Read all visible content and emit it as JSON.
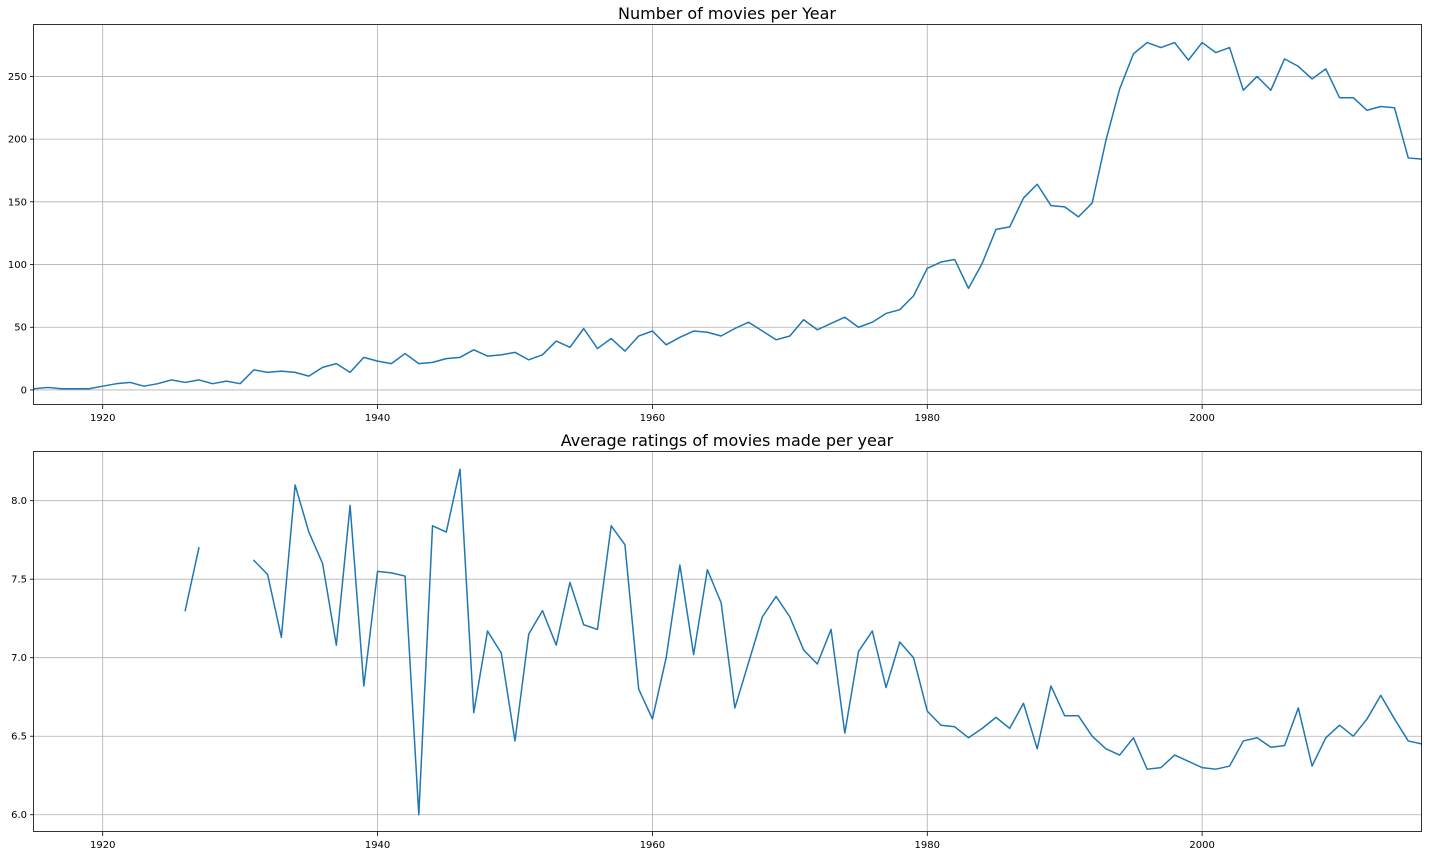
{
  "colors": {
    "series": "#1f77b4",
    "grid": "#b0b0b0",
    "frame": "#000000",
    "background": "#ffffff"
  },
  "chart_data": [
    {
      "type": "line",
      "title": "Number of movies per Year",
      "xlabel": "",
      "ylabel": "",
      "grid": true,
      "xlim": [
        1915,
        2016
      ],
      "ylim": [
        -12,
        291
      ],
      "xticks": [
        1920,
        1940,
        1960,
        1980,
        2000
      ],
      "yticks": [
        0,
        50,
        100,
        150,
        200,
        250
      ],
      "series": [
        {
          "x": [
            1915,
            1916,
            1917,
            1918,
            1919,
            1920,
            1921,
            1922,
            1923,
            1924,
            1925,
            1926,
            1927,
            1928,
            1929,
            1930,
            1931,
            1932,
            1933,
            1934,
            1935,
            1936,
            1937,
            1938,
            1939,
            1940,
            1941,
            1942,
            1943,
            1944,
            1945,
            1946,
            1947,
            1948,
            1949,
            1950,
            1951,
            1952,
            1953,
            1954,
            1955,
            1956,
            1957,
            1958,
            1959,
            1960,
            1961,
            1962,
            1963,
            1964,
            1965,
            1966,
            1967,
            1968,
            1969,
            1970,
            1971,
            1972,
            1973,
            1974,
            1975,
            1976,
            1977,
            1978,
            1979,
            1980,
            1981,
            1982,
            1983,
            1984,
            1985,
            1986,
            1987,
            1988,
            1989,
            1990,
            1991,
            1992,
            1993,
            1994,
            1995,
            1996,
            1997,
            1998,
            1999,
            2000,
            2001,
            2002,
            2003,
            2004,
            2005,
            2006,
            2007,
            2008,
            2009,
            2010,
            2011,
            2012,
            2013,
            2014,
            2015,
            2016
          ],
          "y": [
            1,
            2,
            1,
            1,
            1,
            3,
            5,
            6,
            3,
            5,
            8,
            6,
            8,
            5,
            7,
            5,
            16,
            14,
            15,
            14,
            11,
            18,
            21,
            14,
            26,
            23,
            21,
            29,
            21,
            22,
            25,
            26,
            32,
            27,
            28,
            30,
            24,
            28,
            39,
            34,
            49,
            33,
            41,
            31,
            43,
            47,
            36,
            42,
            47,
            46,
            43,
            49,
            54,
            47,
            40,
            43,
            56,
            48,
            53,
            58,
            50,
            54,
            61,
            64,
            75,
            97,
            102,
            104,
            81,
            101,
            128,
            130,
            153,
            164,
            147,
            146,
            138,
            149,
            199,
            240,
            268,
            277,
            273,
            277,
            263,
            277,
            269,
            273,
            239,
            250,
            239,
            264,
            258,
            248,
            256,
            233,
            233,
            223,
            226,
            225,
            185,
            184
          ]
        }
      ]
    },
    {
      "type": "line",
      "title": "Average ratings of movies made per year",
      "xlabel": "",
      "ylabel": "",
      "grid": true,
      "xlim": [
        1915,
        2016
      ],
      "ylim": [
        5.89,
        8.31
      ],
      "xticks": [
        1920,
        1940,
        1960,
        1980,
        2000
      ],
      "yticks": [
        6.0,
        6.5,
        7.0,
        7.5,
        8.0
      ],
      "series": [
        {
          "x": [
            1915,
            1916,
            1917,
            1918,
            1919,
            1920,
            1921,
            1922,
            1923,
            1924,
            1925,
            1926,
            1927,
            1928,
            1929,
            1930,
            1931,
            1932,
            1933,
            1934,
            1935,
            1936,
            1937,
            1938,
            1939,
            1940,
            1941,
            1942,
            1943,
            1944,
            1945,
            1946,
            1947,
            1948,
            1949,
            1950,
            1951,
            1952,
            1953,
            1954,
            1955,
            1956,
            1957,
            1958,
            1959,
            1960,
            1961,
            1962,
            1963,
            1964,
            1965,
            1966,
            1967,
            1968,
            1969,
            1970,
            1971,
            1972,
            1973,
            1974,
            1975,
            1976,
            1977,
            1978,
            1979,
            1980,
            1981,
            1982,
            1983,
            1984,
            1985,
            1986,
            1987,
            1988,
            1989,
            1990,
            1991,
            1992,
            1993,
            1994,
            1995,
            1996,
            1997,
            1998,
            1999,
            2000,
            2001,
            2002,
            2003,
            2004,
            2005,
            2006,
            2007,
            2008,
            2009,
            2010,
            2011,
            2012,
            2013,
            2014,
            2015,
            2016
          ],
          "y": [
            null,
            null,
            null,
            null,
            null,
            null,
            null,
            null,
            null,
            null,
            null,
            7.3,
            7.7,
            null,
            null,
            null,
            7.62,
            7.53,
            7.13,
            8.1,
            7.8,
            7.6,
            7.08,
            7.97,
            6.82,
            7.55,
            7.54,
            7.52,
            6.0,
            7.84,
            7.8,
            8.2,
            6.65,
            7.17,
            7.03,
            6.47,
            7.15,
            7.3,
            7.08,
            7.48,
            7.21,
            7.18,
            7.84,
            7.72,
            6.8,
            6.61,
            7.0,
            7.59,
            7.02,
            7.56,
            7.35,
            6.68,
            6.97,
            7.26,
            7.39,
            7.26,
            7.05,
            6.96,
            7.18,
            6.52,
            7.04,
            7.17,
            6.81,
            7.1,
            7.0,
            6.66,
            6.57,
            6.56,
            6.49,
            6.55,
            6.62,
            6.55,
            6.71,
            6.42,
            6.82,
            6.63,
            6.63,
            6.5,
            6.42,
            6.38,
            6.49,
            6.29,
            6.3,
            6.38,
            6.34,
            6.3,
            6.29,
            6.31,
            6.47,
            6.49,
            6.43,
            6.44,
            6.68,
            6.31,
            6.49,
            6.57,
            6.5,
            6.61,
            6.76,
            6.61,
            6.47,
            6.45
          ]
        }
      ]
    }
  ]
}
